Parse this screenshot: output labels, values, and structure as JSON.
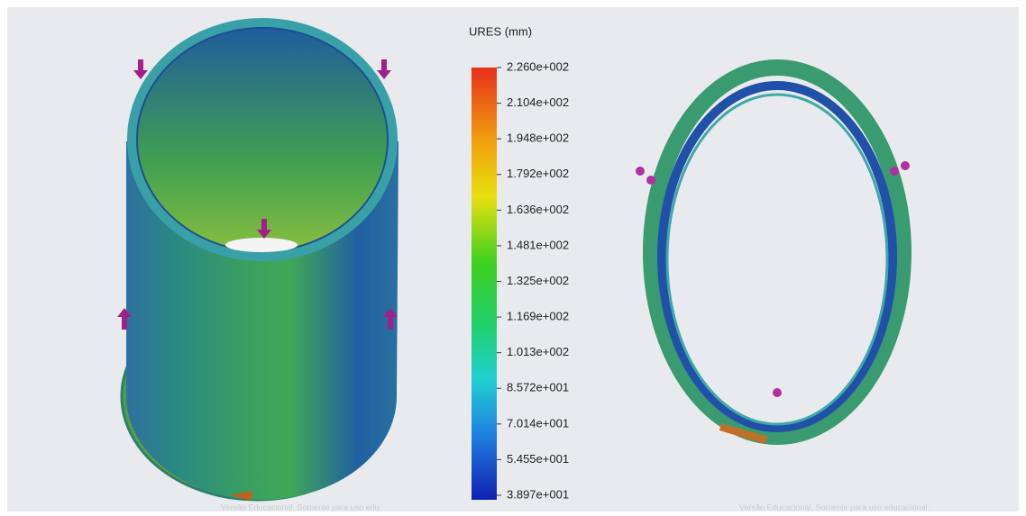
{
  "legend": {
    "title": "URES (mm)",
    "labels": [
      "2.260e+002",
      "2.104e+002",
      "1.948e+002",
      "1.792e+002",
      "1.636e+002",
      "1.481e+002",
      "1.325e+002",
      "1.169e+002",
      "1.013e+002",
      "8.572e+001",
      "7.014e+001",
      "5.455e+001",
      "3.897e+001"
    ]
  },
  "watermarks": [
    "Versão Educacional. Somente para uso edu.",
    "Versão Educacional. Somente para uso educacional."
  ]
}
